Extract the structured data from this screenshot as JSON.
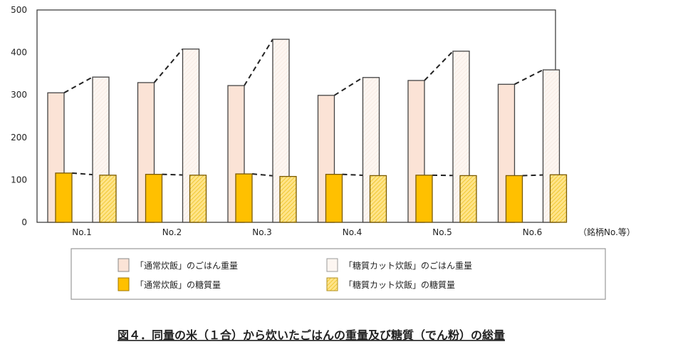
{
  "chart_data": {
    "type": "bar",
    "title": "図４．同量の米（１合）から炊いたごはんの重量及び糖質（でん粉）の総量",
    "xlabel": "（銘柄No.等）",
    "ylabel": "",
    "ylim": [
      0,
      500
    ],
    "yticks": [
      0,
      100,
      200,
      300,
      400,
      500
    ],
    "categories": [
      "No.1",
      "No.2",
      "No.3",
      "No.4",
      "No.5",
      "No.6"
    ],
    "series": [
      {
        "name": "「通常炊飯」のごはん重量",
        "color": "#fbe3d6",
        "values": [
          305,
          329,
          322,
          299,
          334,
          325
        ]
      },
      {
        "name": "「糖質カット炊飯」のごはん重量",
        "color": "#fdf6f1",
        "values": [
          342,
          408,
          431,
          341,
          403,
          359
        ]
      },
      {
        "name": "「通常炊飯」の糖質量",
        "color": "#ffc000",
        "values": [
          116,
          113,
          114,
          113,
          111,
          110
        ]
      },
      {
        "name": "「糖質カット炊飯」の糖質量",
        "color": "#ffe48a",
        "values": [
          111,
          111,
          108,
          110,
          110,
          112
        ]
      }
    ],
    "grid": false,
    "legend": "bottom"
  }
}
